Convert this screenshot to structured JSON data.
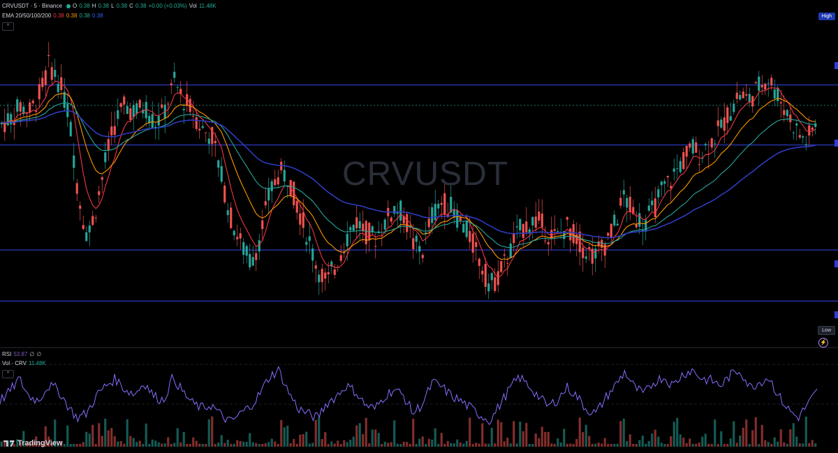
{
  "header": {
    "symbol": "CRVUSDT · 5 · Binance",
    "o_label": "O",
    "o_value": "0.38",
    "h_label": "H",
    "h_value": "0.38",
    "l_label": "L",
    "l_value": "0.38",
    "c_label": "C",
    "c_value": "0.38",
    "change": "+0.00 (+0.03%)",
    "vol_label": "Vol",
    "vol_value": "11.48K"
  },
  "ema": {
    "label": "EMA 20/50/100/200",
    "v20": "0.38",
    "v50": "0.38",
    "v100": "0.38",
    "v200": "0.38",
    "colors": {
      "ema20": "#f23645",
      "ema50": "#ff9800",
      "ema100": "#26a69a",
      "ema200": "#2e3bbf"
    }
  },
  "rsi_legend": {
    "label": "RSI",
    "value": "53.87",
    "extra1": "∅",
    "extra2": "∅"
  },
  "vol_legend": {
    "label": "Vol · CRV",
    "value": "11.48K"
  },
  "collapse_icon": "^",
  "tags": {
    "high": "High",
    "low": "Low"
  },
  "watermark": "CRVUSDT",
  "logo": "TradingView",
  "colors": {
    "up": "#26a69a",
    "down": "#ef5350",
    "level_line": "#2e3fd8",
    "rsi": "#8c6cff",
    "background": "#000000"
  },
  "chart_data": {
    "type": "line",
    "title": "CRVUSDT",
    "xlabel": "",
    "ylabel": "",
    "panels": [
      "price",
      "rsi",
      "volume"
    ],
    "horizontal_levels_rel": [
      0.81,
      0.61,
      0.26,
      0.09
    ],
    "price_rel": [
      0.68,
      0.7,
      0.74,
      0.72,
      0.78,
      0.88,
      0.82,
      0.72,
      0.45,
      0.3,
      0.42,
      0.58,
      0.7,
      0.74,
      0.72,
      0.74,
      0.68,
      0.72,
      0.82,
      0.76,
      0.72,
      0.66,
      0.64,
      0.5,
      0.36,
      0.28,
      0.22,
      0.3,
      0.45,
      0.52,
      0.5,
      0.4,
      0.3,
      0.2,
      0.15,
      0.22,
      0.3,
      0.36,
      0.32,
      0.3,
      0.35,
      0.4,
      0.38,
      0.28,
      0.26,
      0.38,
      0.42,
      0.4,
      0.35,
      0.3,
      0.22,
      0.14,
      0.18,
      0.25,
      0.32,
      0.35,
      0.36,
      0.32,
      0.3,
      0.34,
      0.3,
      0.26,
      0.24,
      0.28,
      0.34,
      0.44,
      0.38,
      0.35,
      0.39,
      0.46,
      0.5,
      0.55,
      0.6,
      0.58,
      0.62,
      0.66,
      0.72,
      0.78,
      0.76,
      0.8,
      0.84,
      0.78,
      0.72,
      0.66,
      0.62,
      0.68
    ],
    "rsi_rel": [
      0.45,
      0.55,
      0.7,
      0.5,
      0.45,
      0.62,
      0.58,
      0.4,
      0.25,
      0.3,
      0.5,
      0.62,
      0.7,
      0.58,
      0.52,
      0.66,
      0.5,
      0.45,
      0.72,
      0.55,
      0.42,
      0.36,
      0.4,
      0.28,
      0.2,
      0.3,
      0.38,
      0.52,
      0.72,
      0.8,
      0.55,
      0.36,
      0.3,
      0.25,
      0.42,
      0.5,
      0.62,
      0.55,
      0.4,
      0.35,
      0.5,
      0.58,
      0.5,
      0.3,
      0.42,
      0.66,
      0.6,
      0.5,
      0.44,
      0.36,
      0.28,
      0.22,
      0.4,
      0.58,
      0.72,
      0.62,
      0.5,
      0.38,
      0.46,
      0.6,
      0.5,
      0.35,
      0.3,
      0.48,
      0.62,
      0.78,
      0.6,
      0.52,
      0.66,
      0.72,
      0.62,
      0.75,
      0.8,
      0.7,
      0.68,
      0.62,
      0.74,
      0.8,
      0.6,
      0.66,
      0.72,
      0.5,
      0.35,
      0.25,
      0.4,
      0.55
    ]
  }
}
